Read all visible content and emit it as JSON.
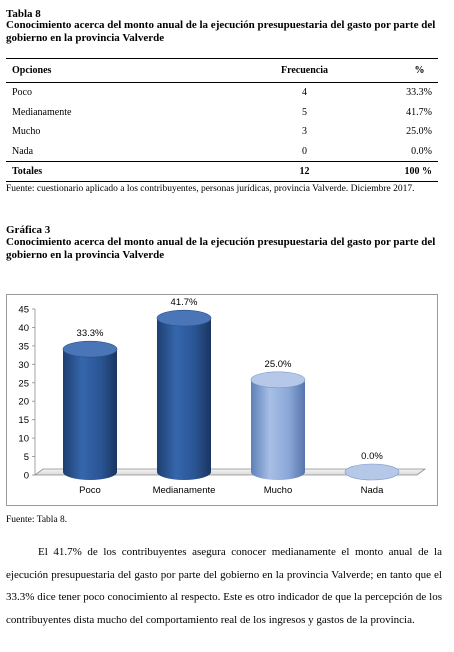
{
  "table": {
    "label": "Tabla 8",
    "title": "Conocimiento acerca del monto anual de la ejecución presupuestaria del gasto por parte del gobierno en la provincia Valverde",
    "headers": [
      "Opciones",
      "Frecuencia",
      "%"
    ],
    "rows": [
      [
        "Poco",
        "4",
        "33.3%"
      ],
      [
        "Medianamente",
        "5",
        "41.7%"
      ],
      [
        "Mucho",
        "3",
        "25.0%"
      ],
      [
        "Nada",
        "0",
        "0.0%"
      ]
    ],
    "total": [
      "Totales",
      "12",
      "100 %"
    ],
    "source": "Fuente: cuestionario aplicado a los contribuyentes, personas jurídicas,  provincia Valverde. Diciembre 2017."
  },
  "figure": {
    "label": "Gráfica 3",
    "title": "Conocimiento acerca del monto anual de la ejecución presupuestaria del gasto por parte del gobierno en la provincia Valverde",
    "source": "Fuente: Tabla 8."
  },
  "chart_data": {
    "type": "bar",
    "categories": [
      "Poco",
      "Medianamente",
      "Mucho",
      "Nada"
    ],
    "values": [
      33.3,
      41.7,
      25.0,
      0.0
    ],
    "data_labels": [
      "33.3%",
      "41.7%",
      "25.0%",
      "0.0%"
    ],
    "yticks": [
      "0",
      "5",
      "10",
      "15",
      "20",
      "25",
      "30",
      "35",
      "40",
      "45"
    ],
    "ylim": [
      0,
      45
    ],
    "style": "3d-cylinder",
    "colors": {
      "Poco": "#2f5d9c",
      "Medianamente": "#2f5d9c",
      "Mucho": "#8aa7d8",
      "Nada": "#8aa7d8"
    },
    "grid": false,
    "legend": "none"
  },
  "paragraph": "El 41.7% de los contribuyentes asegura conocer medianamente el monto anual de la ejecución presupuestaria del gasto por parte del gobierno en la provincia Valverde; en tanto que el 33.3% dice tener poco conocimiento al respecto. Este es otro indicador de que la percepción de los contribuyentes dista mucho del comportamiento real de los ingresos y gastos de la provincia."
}
